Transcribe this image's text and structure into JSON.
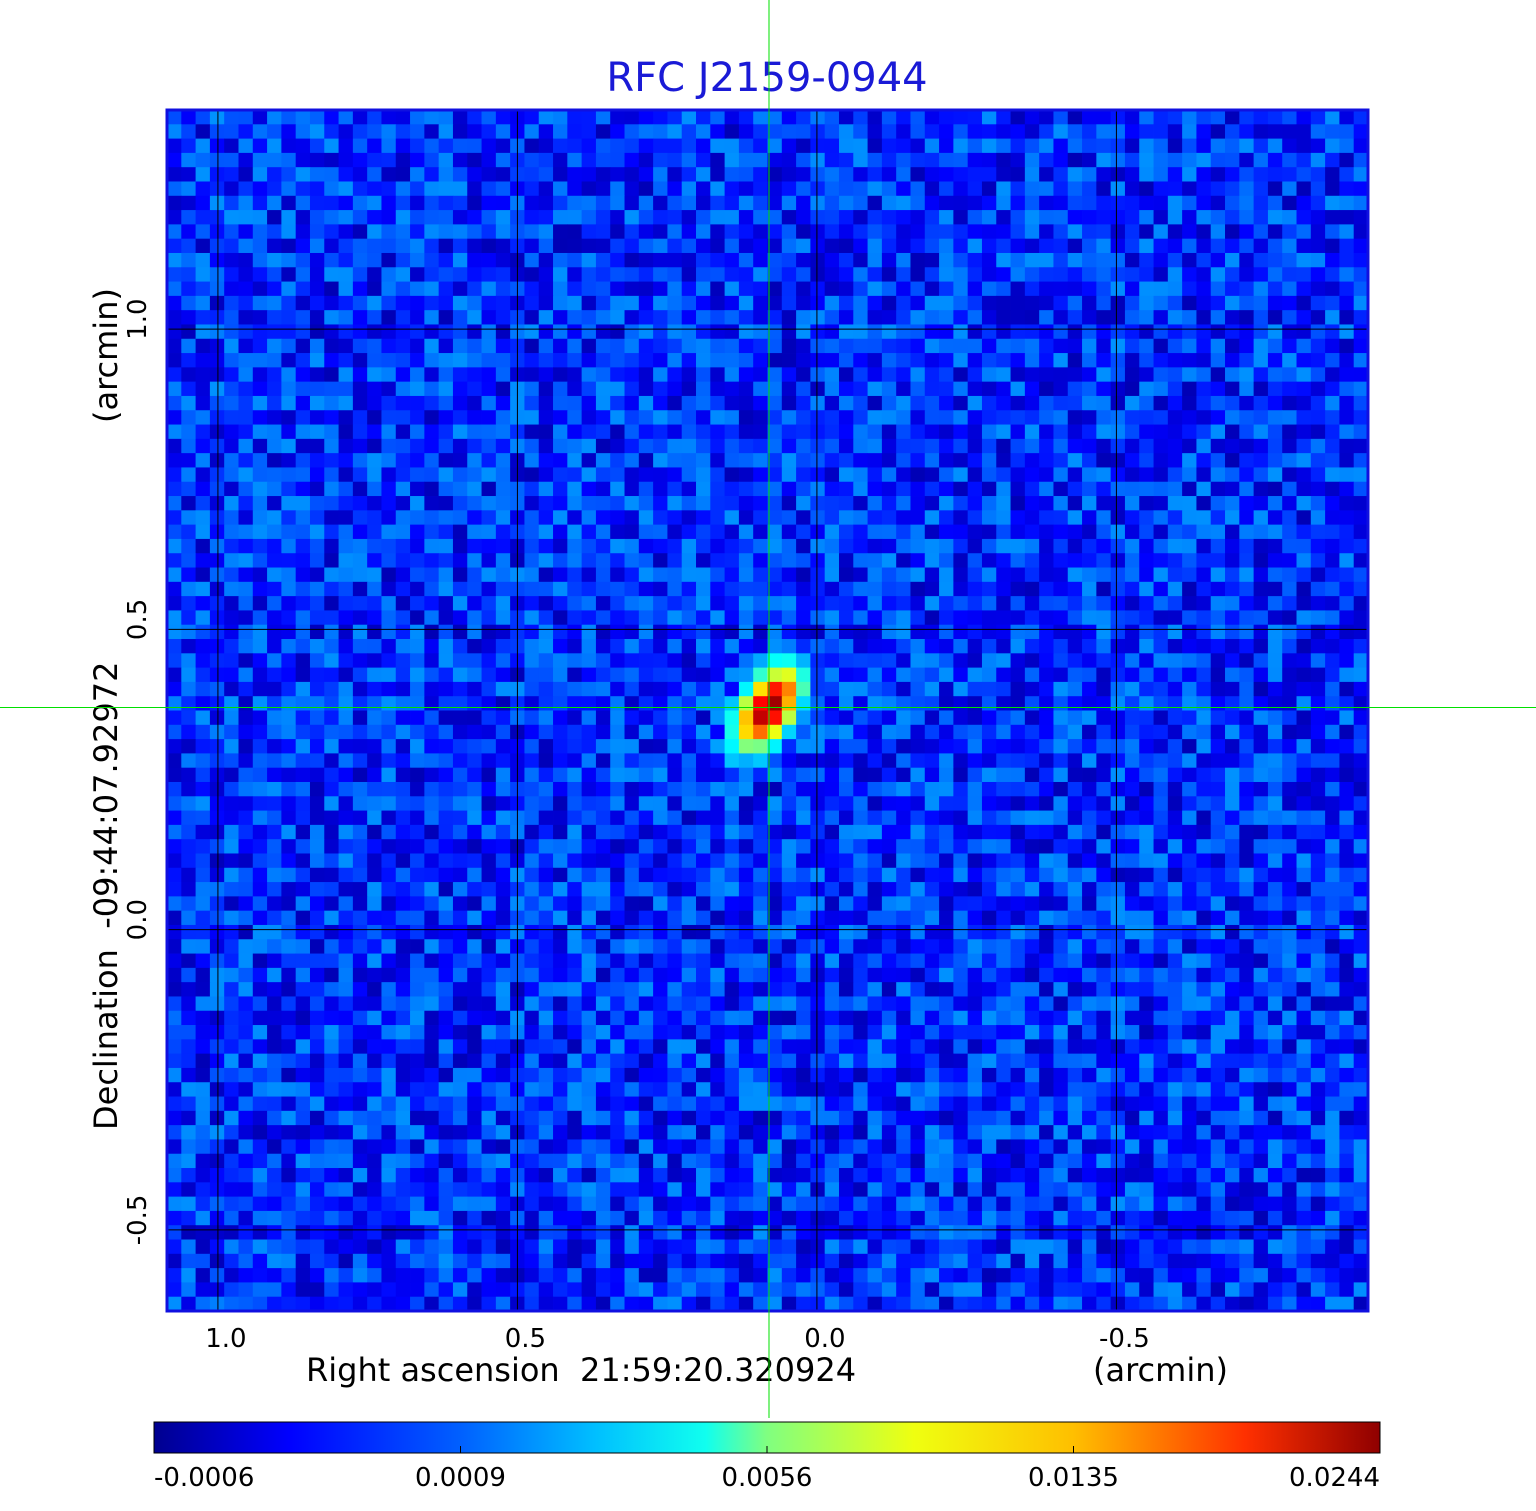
{
  "chart_data": {
    "type": "heatmap",
    "title": "RFC J2159-0944",
    "xlabel": "Right ascension  21:59:20.320924",
    "xunit": "(arcmin)",
    "ylabel": "Declination  -09:44:07.92972",
    "yunit": "(arcmin)",
    "x_ticks": [
      "1.0",
      "0.5",
      "0.0",
      "-0.5"
    ],
    "x_tick_values": [
      1.0,
      0.5,
      0.0,
      -0.5
    ],
    "y_ticks": [
      "1.0",
      "0.5",
      "0.0",
      "-0.5"
    ],
    "y_tick_values": [
      1.0,
      0.5,
      0.0,
      -0.5
    ],
    "xlim": [
      1.085,
      -0.92
    ],
    "ylim": [
      -0.635,
      1.365
    ],
    "grid": true,
    "colormap": "jet",
    "colorbar_ticks": [
      "-0.0006",
      "0.0009",
      "0.0056",
      "0.0135",
      "0.0244"
    ],
    "colorbar_tick_values": [
      -0.0006,
      0.0009,
      0.0056,
      0.0135,
      0.0244
    ],
    "background_level": 0.0003,
    "source": {
      "ra_offset_arcmin": 0.08,
      "dec_offset_arcmin": 0.37,
      "peak": 0.0244,
      "crosshair_color": "#00e000"
    }
  }
}
